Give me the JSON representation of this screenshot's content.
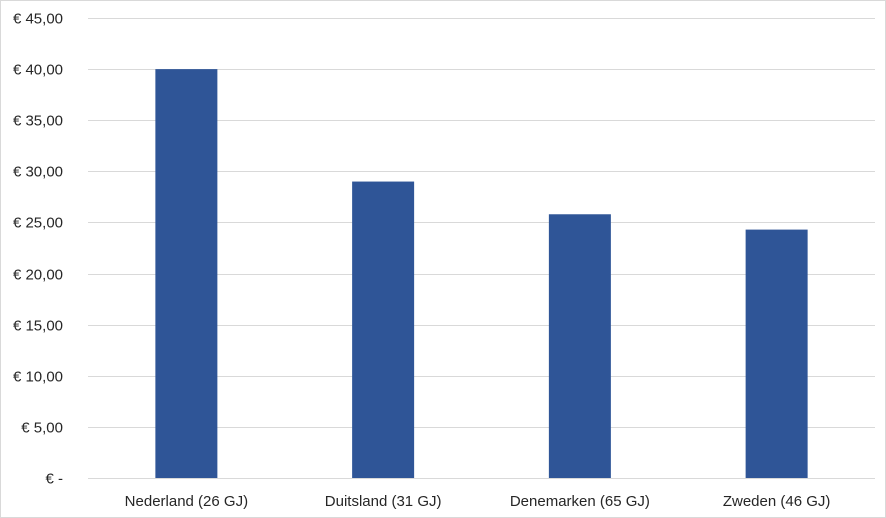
{
  "chart_data": {
    "type": "bar",
    "categories": [
      "Nederland (26 GJ)",
      "Duitsland (31 GJ)",
      "Denemarken (65 GJ)",
      "Zweden (46 GJ)"
    ],
    "values": [
      40.0,
      29.0,
      25.8,
      24.3
    ],
    "title": "",
    "xlabel": "",
    "ylabel": "",
    "ylim": [
      0,
      45
    ],
    "yticks": [
      0,
      5,
      10,
      15,
      20,
      25,
      30,
      35,
      40,
      45
    ],
    "ytick_labels": [
      "€ -",
      "€ 5,00",
      "€ 10,00",
      "€ 15,00",
      "€ 20,00",
      "€ 25,00",
      "€ 30,00",
      "€ 35,00",
      "€ 40,00",
      "€ 45,00"
    ],
    "grid": true,
    "legend": "none",
    "colors": {
      "bar": "#2f5597",
      "grid": "#d9d9d9",
      "text": "#262626"
    }
  }
}
